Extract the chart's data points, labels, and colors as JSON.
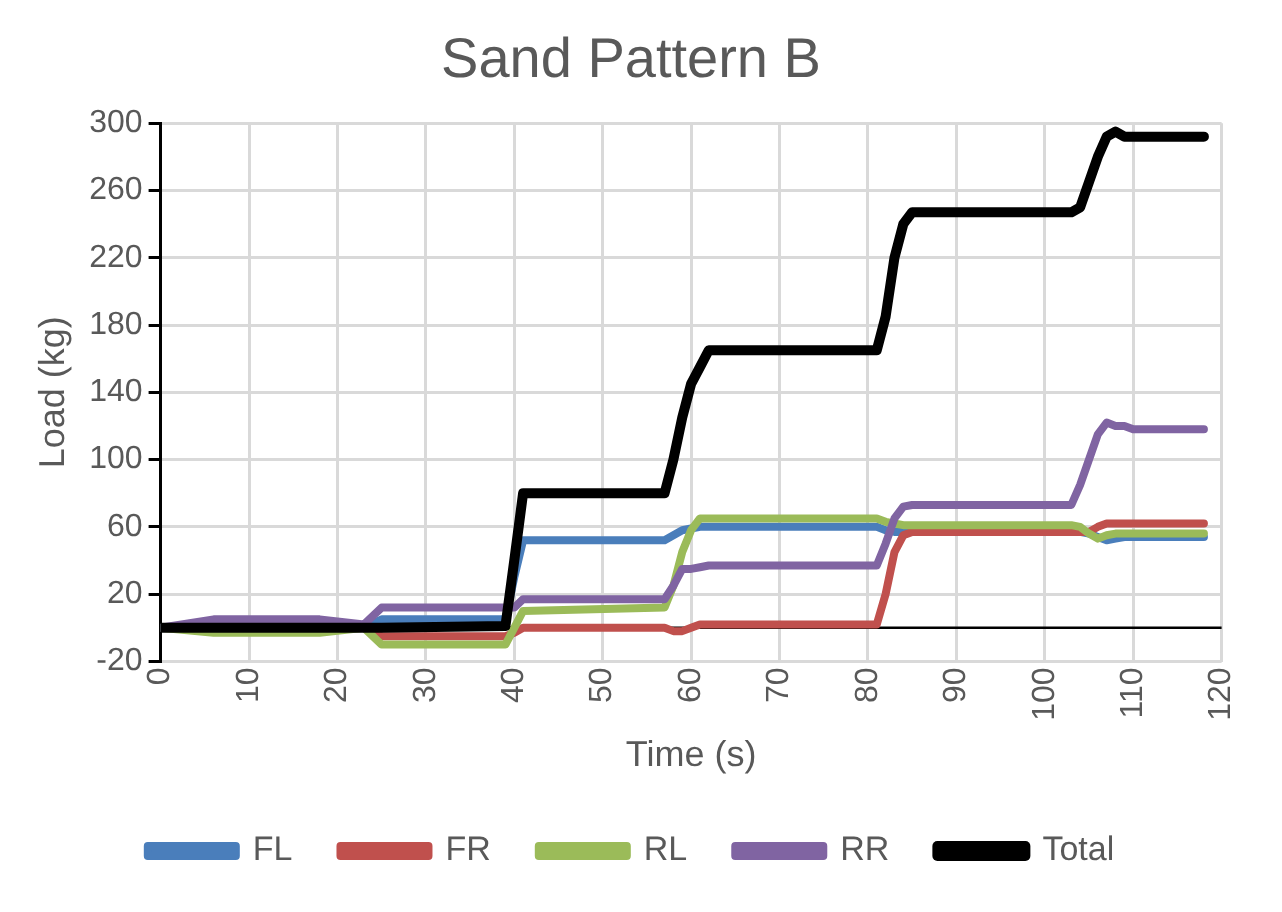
{
  "chart_data": {
    "type": "line",
    "title": "Sand Pattern B",
    "xlabel": "Time (s)",
    "ylabel": "Load (kg)",
    "x": [
      0,
      6,
      18,
      23,
      25,
      39,
      40,
      41,
      57,
      58,
      59,
      60,
      61,
      62,
      81,
      82,
      83,
      84,
      85,
      103,
      104,
      105,
      106,
      107,
      108,
      109,
      110,
      118
    ],
    "series": [
      {
        "name": "FL",
        "color": "#4a7ebb",
        "values": [
          0,
          0,
          0,
          0,
          5,
          5,
          30,
          52,
          52,
          55,
          58,
          59,
          60,
          60,
          60,
          58,
          57,
          57,
          57,
          57,
          57,
          56,
          54,
          52,
          53,
          54,
          54,
          54
        ]
      },
      {
        "name": "FR",
        "color": "#c0504d",
        "values": [
          null,
          null,
          0,
          0,
          -5,
          -5,
          -3,
          0,
          0,
          -2,
          -2,
          0,
          2,
          2,
          2,
          20,
          45,
          55,
          57,
          57,
          57,
          57,
          60,
          62,
          62,
          62,
          62,
          62
        ]
      },
      {
        "name": "RL",
        "color": "#9bbb59",
        "values": [
          0,
          -3,
          -3,
          0,
          -10,
          -10,
          0,
          10,
          12,
          25,
          45,
          58,
          65,
          65,
          65,
          63,
          62,
          61,
          61,
          61,
          60,
          56,
          53,
          55,
          56,
          56,
          56,
          56
        ]
      },
      {
        "name": "RR",
        "color": "#8064a2",
        "values": [
          0,
          5,
          5,
          2,
          12,
          12,
          12,
          17,
          17,
          25,
          35,
          35,
          36,
          37,
          37,
          50,
          65,
          72,
          73,
          73,
          85,
          100,
          115,
          122,
          120,
          120,
          118,
          118
        ]
      },
      {
        "name": "Total",
        "color": "#000000",
        "values": [
          0,
          0,
          0,
          0,
          0,
          1,
          40,
          80,
          80,
          100,
          125,
          145,
          155,
          165,
          165,
          185,
          220,
          240,
          247,
          247,
          250,
          265,
          280,
          292,
          295,
          292,
          292,
          292
        ]
      }
    ],
    "xlim": [
      0,
      120
    ],
    "xticks": [
      0,
      10,
      20,
      30,
      40,
      50,
      60,
      70,
      80,
      90,
      100,
      110,
      120
    ],
    "ylim": [
      -20,
      300
    ],
    "yticks": [
      -20,
      20,
      60,
      100,
      140,
      180,
      220,
      260,
      300
    ],
    "ref_lines": [
      {
        "axis": "y",
        "value": 0,
        "color": "#000000"
      }
    ],
    "grid": true,
    "legend": "bottom",
    "marker": "none",
    "line_style": "solid"
  }
}
